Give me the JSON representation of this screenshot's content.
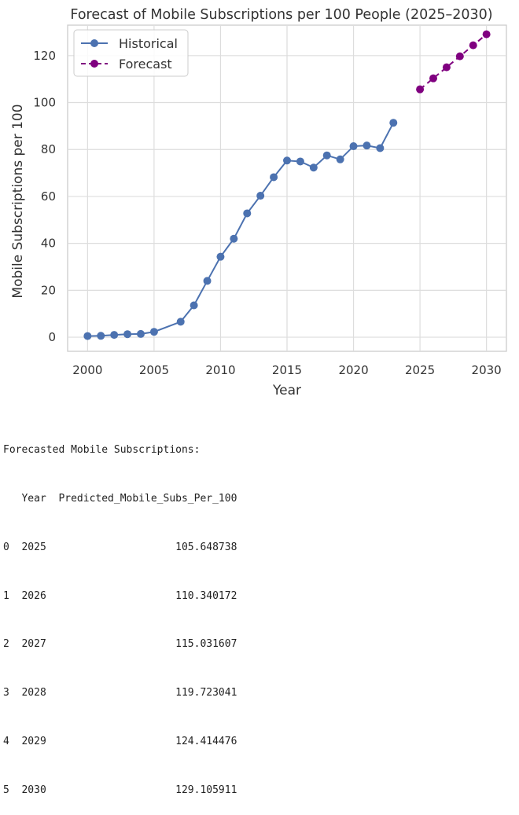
{
  "chart_data": {
    "type": "line",
    "title": "Forecast of Mobile Subscriptions per 100 People (2025–2030)",
    "xlabel": "Year",
    "ylabel": "Mobile Subscriptions per 100",
    "xlim": [
      1998.5,
      2031.5
    ],
    "ylim": [
      -6,
      133
    ],
    "xticks": [
      2000,
      2005,
      2010,
      2015,
      2020,
      2025,
      2030
    ],
    "yticks": [
      0,
      20,
      40,
      60,
      80,
      100,
      120
    ],
    "grid": true,
    "legend_position": "top-left",
    "series": [
      {
        "name": "Historical",
        "color": "#4c72b0",
        "style": "solid",
        "marker": "circle",
        "x": [
          2000,
          2001,
          2002,
          2003,
          2004,
          2005,
          2007,
          2008,
          2009,
          2010,
          2011,
          2012,
          2013,
          2014,
          2015,
          2016,
          2017,
          2018,
          2019,
          2020,
          2021,
          2022,
          2023
        ],
        "y": [
          0.5,
          0.6,
          1.0,
          1.3,
          1.4,
          2.3,
          6.6,
          13.6,
          24.0,
          34.3,
          42.0,
          52.8,
          60.3,
          68.2,
          75.3,
          74.9,
          72.3,
          77.5,
          75.8,
          81.4,
          81.7,
          80.6,
          91.4
        ]
      },
      {
        "name": "Forecast",
        "color": "#800080",
        "style": "dashed",
        "marker": "circle",
        "x": [
          2025,
          2026,
          2027,
          2028,
          2029,
          2030
        ],
        "y": [
          105.648738,
          110.340172,
          115.031607,
          119.723041,
          124.414476,
          129.105911
        ]
      }
    ]
  },
  "output": {
    "heading": "Forecasted Mobile Subscriptions:",
    "header_row": "   Year  Predicted_Mobile_Subs_Per_100",
    "rows": [
      "0  2025                     105.648738",
      "1  2026                     110.340172",
      "2  2027                     115.031607",
      "3  2028                     119.723041",
      "4  2029                     124.414476",
      "5  2030                     129.105911"
    ]
  }
}
